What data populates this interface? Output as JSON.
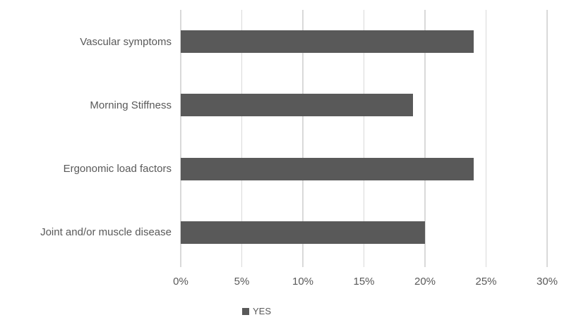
{
  "chart_data": {
    "type": "bar",
    "orientation": "horizontal",
    "title": "",
    "xlabel": "",
    "ylabel": "",
    "categories": [
      "Vascular symptoms",
      "Morning Stiffness",
      "Ergonomic load factors",
      "Joint and/or muscle disease"
    ],
    "series": [
      {
        "name": "YES",
        "values": [
          24,
          19,
          24,
          20
        ]
      }
    ],
    "xlim": [
      0,
      30
    ],
    "x_ticks": [
      0,
      5,
      10,
      15,
      20,
      25,
      30
    ],
    "x_tick_labels": [
      "0%",
      "5%",
      "10%",
      "15%",
      "20%",
      "25%",
      "30%"
    ],
    "grid": true,
    "legend_position": "bottom",
    "colors": {
      "bar": "#595959",
      "gridline": "#d9d9d9",
      "text": "#595959",
      "background": "#ffffff"
    }
  }
}
